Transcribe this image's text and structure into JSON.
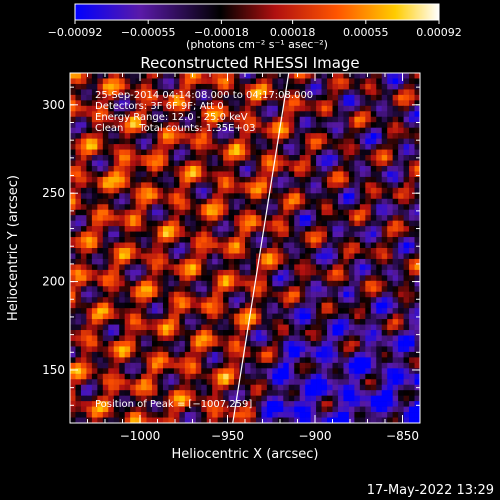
{
  "chart_data": {
    "type": "heatmap",
    "title": "Reconstructed RHESSI Image",
    "xlabel": "Heliocentric X (arcsec)",
    "ylabel": "Heliocentric Y (arcsec)",
    "xlim": [
      -1040,
      -840
    ],
    "ylim": [
      120,
      318
    ],
    "x_ticks": [
      -1000,
      -950,
      -900,
      -850
    ],
    "x_tick_labels": [
      "−1000",
      "−950",
      "−900",
      "−850"
    ],
    "y_ticks": [
      150,
      200,
      250,
      300
    ],
    "y_tick_labels": [
      "150",
      "200",
      "250",
      "300"
    ],
    "colorbar": {
      "range": [
        -0.00092,
        0.00092
      ],
      "ticks": [
        -0.00092,
        -0.00055,
        -0.00018,
        0.00018,
        0.00055,
        0.00092
      ],
      "tick_labels": [
        "−0.00092",
        "−0.00055",
        "−0.00018",
        "0.00018",
        "0.00055",
        "0.00092"
      ],
      "unit_label": "(photons cm⁻² s⁻¹ asec⁻²)",
      "colors": [
        "#0000ff",
        "#5a1aa8",
        "#000000",
        "#b01010",
        "#ff5500",
        "#ffcc00",
        "#ffffff"
      ]
    },
    "info_lines": [
      "25-Sep-2014 04:14:08.000 to 04:17:08.000",
      "Detectors: 3F 6F 9F; Att 0",
      "Energy Range: 12.0 - 25.0 keV",
      "Clean     Total counts: 1.35E+03"
    ],
    "peak_label": "Position of Peak = [−1007,259]",
    "peak_position": [
      -1007,
      259
    ],
    "limb_line": [
      [
        -947,
        120
      ],
      [
        -915,
        318
      ]
    ],
    "grid": false
  },
  "footer": {
    "timestamp": "17-May-2022 13:29"
  }
}
